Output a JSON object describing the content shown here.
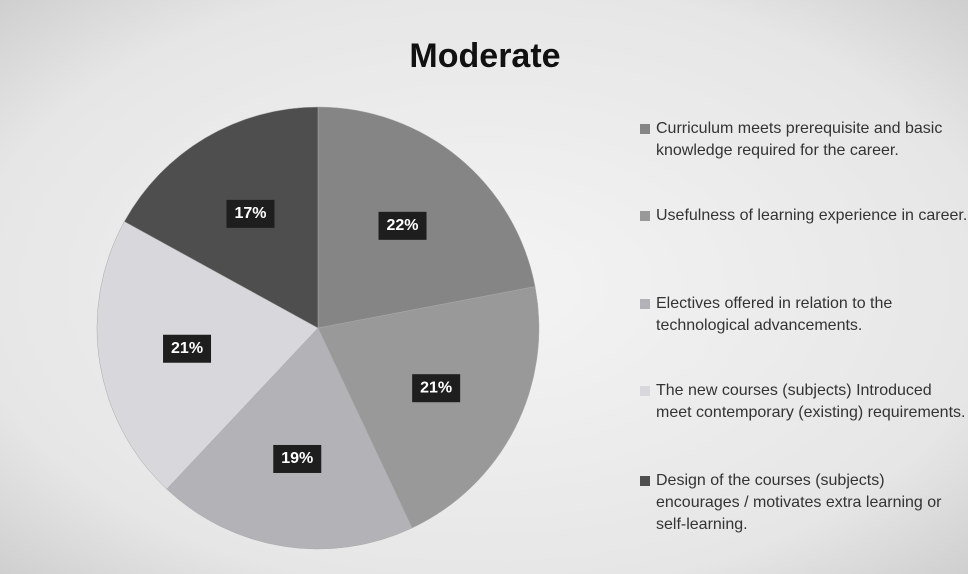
{
  "chart_data": {
    "type": "pie",
    "title": "Moderate",
    "categories": [
      "Curriculum meets prerequisite and basic knowledge required for the career.",
      "Usefulness of learning experience in career.",
      "Electives offered in relation to the technological advancements.",
      "The new courses (subjects) Introduced meet contemporary (existing) requirements.",
      "Design of the courses (subjects) encourages / motivates extra learning or self-learning."
    ],
    "values": [
      22,
      21,
      19,
      21,
      17
    ],
    "value_labels": [
      "22%",
      "21%",
      "19%",
      "21%",
      "17%"
    ],
    "colors": [
      "#858585",
      "#999999",
      "#b3b3b7",
      "#d8d8dc",
      "#4e4e4e"
    ],
    "legend": "right"
  }
}
